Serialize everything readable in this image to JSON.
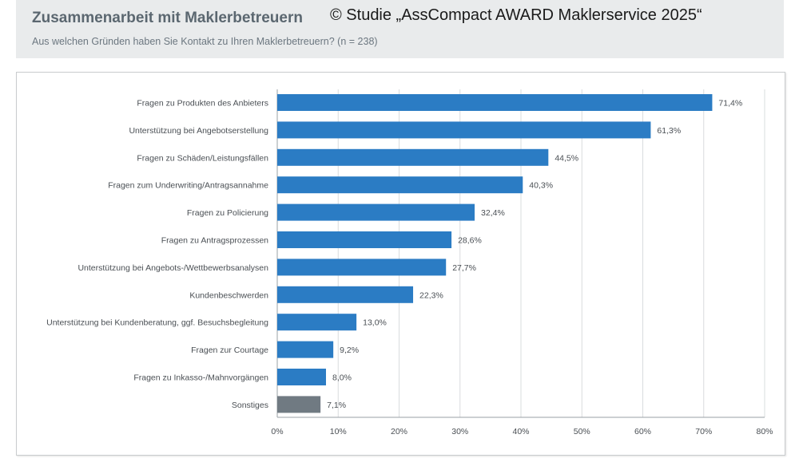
{
  "header": {
    "title": "Zusammenarbeit mit Maklerbetreuern",
    "subtitle": "Aus welchen Gründen haben Sie Kontakt zu Ihren Maklerbetreuern? (n = 238)",
    "copyright": "© Studie „AssCompact AWARD Maklerservice 2025“"
  },
  "chart_data": {
    "type": "bar",
    "orientation": "horizontal",
    "categories": [
      "Fragen zu Produkten des Anbieters",
      "Unterstützung bei Angebotserstellung",
      "Fragen zu Schäden/Leistungsfällen",
      "Fragen zum Underwriting/Antragsannahme",
      "Fragen zu Policierung",
      "Fragen zu Antragsprozessen",
      "Unterstützung bei Angebots-/Wettbewerbsanalysen",
      "Kundenbeschwerden",
      "Unterstützung bei Kundenberatung, ggf. Besuchsbegleitung",
      "Fragen zur Courtage",
      "Fragen zu Inkasso-/Mahnvorgängen",
      "Sonstiges"
    ],
    "values": [
      71.4,
      61.3,
      44.5,
      40.3,
      32.4,
      28.6,
      27.7,
      22.3,
      13.0,
      9.2,
      8.0,
      7.1
    ],
    "value_labels": [
      "71,4%",
      "61,3%",
      "44,5%",
      "40,3%",
      "32,4%",
      "28,6%",
      "27,7%",
      "22,3%",
      "13,0%",
      "9,2%",
      "8,0%",
      "7,1%"
    ],
    "xlim": [
      0,
      80
    ],
    "xticks": [
      0,
      10,
      20,
      30,
      40,
      50,
      60,
      70,
      80
    ],
    "xtick_labels": [
      "0%",
      "10%",
      "20%",
      "30%",
      "40%",
      "50%",
      "60%",
      "70%",
      "80%"
    ],
    "grid": "vertical",
    "colors": {
      "bar": "#2b7cc4",
      "other_bar": "#707a82",
      "grid": "#d9dcde",
      "axis": "#9aa0a5"
    }
  }
}
